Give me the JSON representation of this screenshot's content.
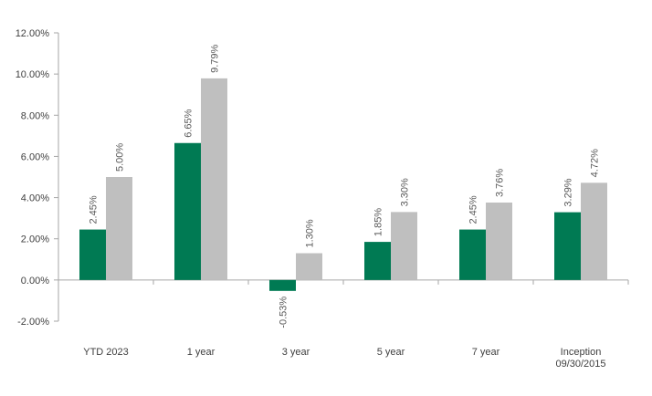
{
  "chart_data": {
    "type": "bar",
    "categories": [
      [
        "YTD 2023"
      ],
      [
        "1 year"
      ],
      [
        "3 year"
      ],
      [
        "5 year"
      ],
      [
        "7 year"
      ],
      [
        "Inception",
        "09/30/2015"
      ]
    ],
    "series": [
      {
        "color": "#007a53",
        "values": [
          2.45,
          6.65,
          -0.53,
          1.85,
          2.45,
          3.29
        ],
        "labels": [
          "2.45%",
          "6.65%",
          "-0.53%",
          "1.85%",
          "2.45%",
          "3.29%"
        ]
      },
      {
        "color": "#bfbfbf",
        "values": [
          5.0,
          9.79,
          1.3,
          3.3,
          3.76,
          4.72
        ],
        "labels": [
          "5.00%",
          "9.79%",
          "1.30%",
          "3.30%",
          "3.76%",
          "4.72%"
        ]
      }
    ],
    "ylim": [
      -2,
      12
    ],
    "yticks": [
      -2,
      0,
      2,
      4,
      6,
      8,
      10,
      12
    ],
    "ytick_labels": [
      "-2.00%",
      "0.00%",
      "2.00%",
      "4.00%",
      "6.00%",
      "8.00%",
      "10.00%",
      "12.00%"
    ],
    "grid": false,
    "legend": "none",
    "title": "",
    "xlabel": "",
    "ylabel": ""
  }
}
